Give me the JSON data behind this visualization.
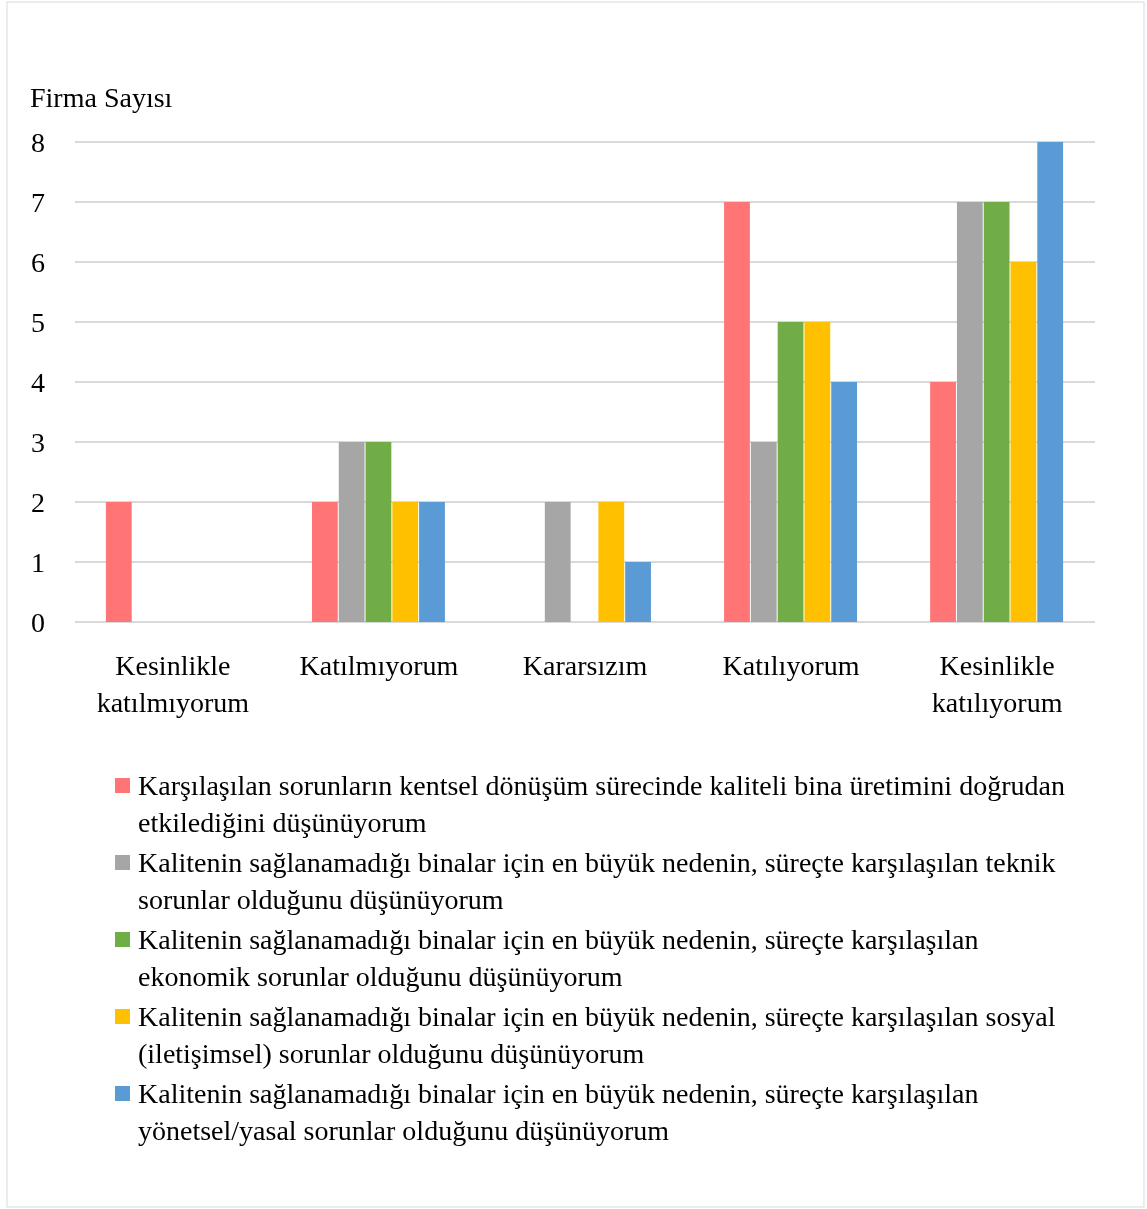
{
  "chart_data": {
    "type": "bar",
    "ylabel": "Firma Sayısı",
    "categories": [
      "Kesinlikle katılmıyorum",
      "Katılmıyorum",
      "Kararsızım",
      "Katılıyorum",
      "Kesinlikle katılıyorum"
    ],
    "series": [
      {
        "name": "Karşılaşılan sorunların kentsel dönüşüm sürecinde kaliteli bina üretimini doğrudan etkilediğini düşünüyorum",
        "color": "#ff7575",
        "values": [
          2,
          2,
          0,
          7,
          4
        ]
      },
      {
        "name": "Kalitenin sağlanamadığı binalar için en büyük nedenin, süreçte karşılaşılan teknik sorunlar olduğunu düşünüyorum",
        "color": "#a6a6a6",
        "values": [
          0,
          3,
          2,
          3,
          7
        ]
      },
      {
        "name": "Kalitenin sağlanamadığı binalar için en büyük nedenin, süreçte karşılaşılan ekonomik sorunlar olduğunu düşünüyorum",
        "color": "#70ad47",
        "values": [
          0,
          3,
          0,
          5,
          7
        ]
      },
      {
        "name": "Kalitenin sağlanamadığı binalar için en büyük nedenin, süreçte karşılaşılan sosyal (iletişimsel) sorunlar olduğunu düşünüyorum",
        "color": "#ffc000",
        "values": [
          0,
          2,
          2,
          5,
          6
        ]
      },
      {
        "name": "Kalitenin sağlanamadığı binalar için en büyük nedenin, süreçte karşılaşılan yönetsel/yasal sorunlar olduğunu düşünüyorum",
        "color": "#5b9bd5",
        "values": [
          0,
          2,
          1,
          4,
          8
        ]
      }
    ],
    "ylim": [
      0,
      8
    ],
    "yticks": [
      0,
      1,
      2,
      3,
      4,
      5,
      6,
      7,
      8
    ],
    "grid": "y",
    "legend": "bottom"
  }
}
